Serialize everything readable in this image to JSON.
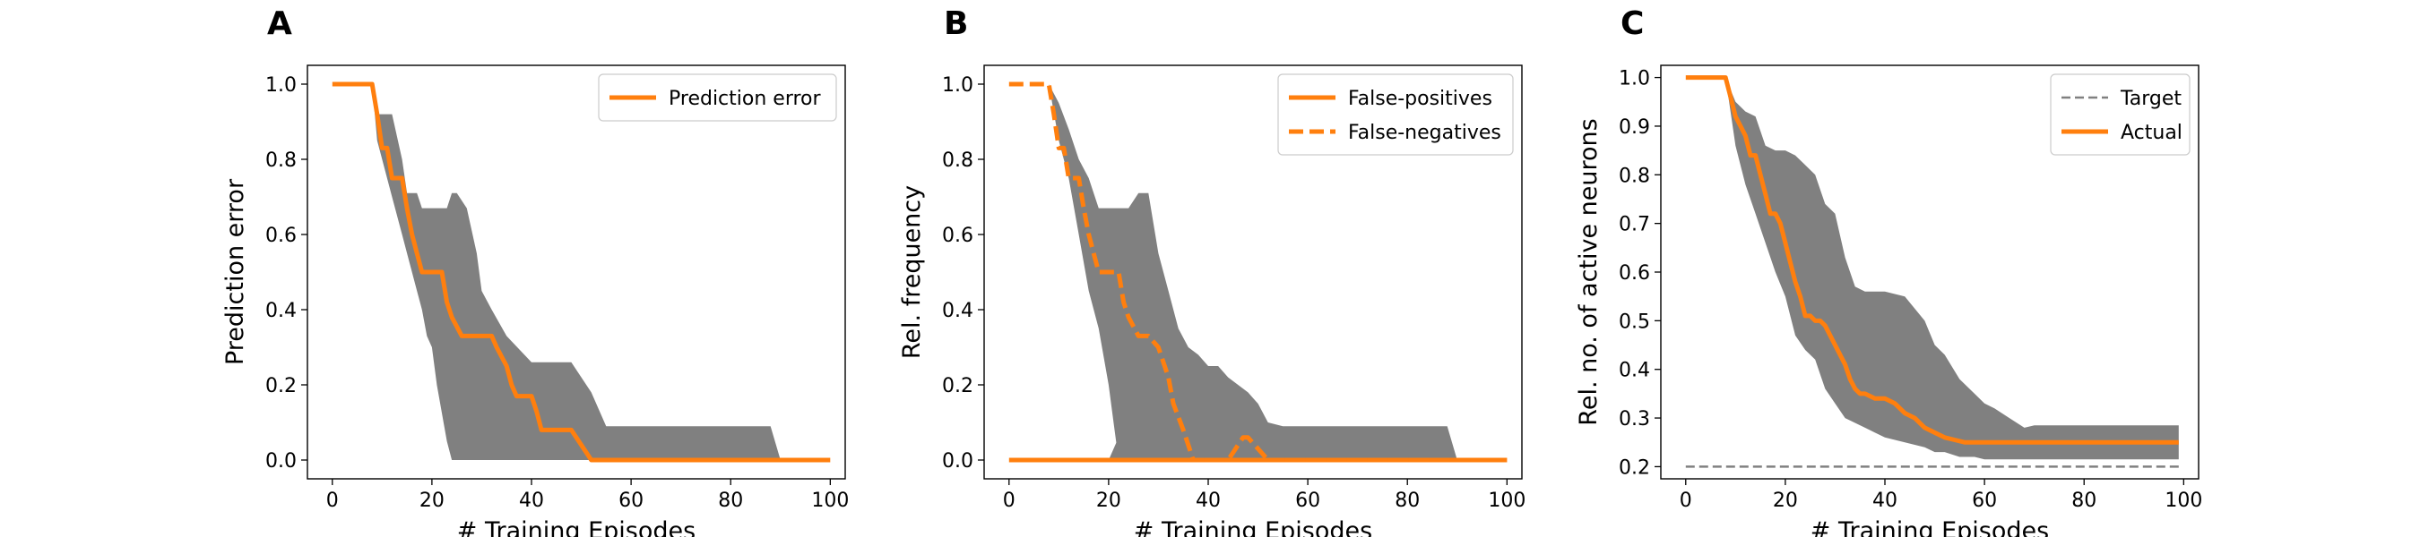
{
  "chart_data": [
    {
      "panel": "A",
      "type": "line",
      "xlabel": "# Training Episodes",
      "ylabel": "Prediction error",
      "xlim": [
        -5,
        103
      ],
      "ylim": [
        -0.05,
        1.05
      ],
      "xticks": [
        0,
        20,
        40,
        60,
        80,
        100
      ],
      "yticks": [
        0.0,
        0.2,
        0.4,
        0.6,
        0.8,
        1.0
      ],
      "ytick_labels": [
        "0.0",
        "0.2",
        "0.4",
        "0.6",
        "0.8",
        "1.0"
      ],
      "grid": false,
      "legend_position": "upper right",
      "bands": [
        {
          "color": "#808080",
          "x": [
            0,
            8,
            9,
            12,
            14,
            15,
            17,
            18,
            19,
            20,
            21,
            23,
            24,
            25,
            27,
            29,
            30,
            32,
            35,
            40,
            48,
            52,
            55,
            60,
            88,
            90,
            100
          ],
          "upper": [
            1,
            1,
            0.92,
            0.92,
            0.8,
            0.71,
            0.71,
            0.67,
            0.67,
            0.67,
            0.67,
            0.67,
            0.71,
            0.71,
            0.67,
            0.55,
            0.45,
            0.4,
            0.33,
            0.26,
            0.26,
            0.18,
            0.09,
            0.09,
            0.09,
            0.0,
            0.0
          ],
          "lower": [
            1,
            1,
            0.85,
            0.7,
            0.6,
            0.55,
            0.45,
            0.4,
            0.33,
            0.3,
            0.2,
            0.05,
            0.0,
            0.0,
            0.0,
            0.0,
            0.0,
            0.0,
            0.0,
            0.0,
            0.0,
            0.0,
            0.0,
            0.0,
            0.0,
            0.0,
            0.0
          ]
        }
      ],
      "series": [
        {
          "name": "Prediction error",
          "color": "#ff7f0e",
          "dash": "solid",
          "x": [
            0,
            8,
            9,
            10,
            11,
            12,
            14,
            15,
            16,
            17,
            18,
            19,
            20,
            22,
            23,
            24,
            26,
            27,
            30,
            32,
            33,
            35,
            36,
            37,
            38,
            40,
            41,
            42,
            45,
            48,
            50,
            52,
            55,
            60,
            70,
            80,
            90,
            100
          ],
          "y": [
            1,
            1,
            0.92,
            0.83,
            0.83,
            0.75,
            0.75,
            0.67,
            0.6,
            0.55,
            0.5,
            0.5,
            0.5,
            0.5,
            0.42,
            0.38,
            0.33,
            0.33,
            0.33,
            0.33,
            0.3,
            0.25,
            0.2,
            0.17,
            0.17,
            0.17,
            0.13,
            0.08,
            0.08,
            0.08,
            0.04,
            0.0,
            0.0,
            0.0,
            0.0,
            0.0,
            0.0,
            0.0
          ]
        }
      ]
    },
    {
      "panel": "B",
      "type": "line",
      "xlabel": "# Training Episodes",
      "ylabel": "Rel. frequency",
      "xlim": [
        -5,
        103
      ],
      "ylim": [
        -0.05,
        1.05
      ],
      "xticks": [
        0,
        20,
        40,
        60,
        80,
        100
      ],
      "yticks": [
        0.0,
        0.2,
        0.4,
        0.6,
        0.8,
        1.0
      ],
      "ytick_labels": [
        "0.0",
        "0.2",
        "0.4",
        "0.6",
        "0.8",
        "1.0"
      ],
      "grid": false,
      "legend_position": "upper right",
      "bands": [
        {
          "color": "#808080",
          "x": [
            0,
            8,
            10,
            12,
            14,
            16,
            18,
            20,
            21,
            22,
            24,
            26,
            28,
            30,
            32,
            34,
            36,
            38,
            40,
            42,
            44,
            46,
            48,
            50,
            52,
            55,
            60,
            88,
            90,
            100
          ],
          "upper": [
            1,
            1,
            0.95,
            0.88,
            0.8,
            0.75,
            0.67,
            0.67,
            0.67,
            0.67,
            0.67,
            0.71,
            0.71,
            0.55,
            0.45,
            0.35,
            0.3,
            0.28,
            0.25,
            0.25,
            0.22,
            0.2,
            0.18,
            0.15,
            0.1,
            0.09,
            0.09,
            0.09,
            0.0,
            0.0
          ],
          "lower": [
            1,
            1,
            0.85,
            0.75,
            0.6,
            0.45,
            0.35,
            0.2,
            0.1,
            0.0,
            0.0,
            0.0,
            0.0,
            0.0,
            0.0,
            0.0,
            0.0,
            0.0,
            0.0,
            0.0,
            0.0,
            0.0,
            0.0,
            0.0,
            0.0,
            0.0,
            0.0,
            0.0,
            0.0,
            0.0
          ]
        },
        {
          "color": "#808080",
          "x": [
            0,
            20,
            22,
            24,
            25,
            26,
            27,
            28,
            30,
            33,
            36,
            38,
            40,
            42,
            44,
            46,
            48,
            50,
            52,
            55,
            100
          ],
          "upper": [
            0,
            0,
            0.06,
            0.09,
            0.08,
            0.06,
            0.04,
            0.0,
            0.0,
            0.0,
            0.0,
            0.0,
            0.0,
            0.0,
            0.0,
            0.0,
            0.0,
            0.0,
            0.0,
            0.0,
            0.0
          ],
          "lower": [
            0,
            0,
            0.0,
            0.0,
            0.0,
            0.0,
            0.0,
            0.0,
            0.0,
            0.0,
            0.0,
            0.0,
            0.0,
            0.0,
            0.0,
            0.0,
            0.0,
            0.0,
            0.0,
            0.0,
            0.0
          ]
        }
      ],
      "series": [
        {
          "name": "False-positives",
          "color": "#ff7f0e",
          "dash": "solid",
          "x": [
            0,
            20,
            40,
            60,
            80,
            100
          ],
          "y": [
            0,
            0,
            0,
            0,
            0,
            0
          ]
        },
        {
          "name": "False-negatives",
          "color": "#ff7f0e",
          "dash": "dashed",
          "x": [
            0,
            8,
            9,
            10,
            11,
            12,
            14,
            15,
            16,
            17,
            18,
            19,
            20,
            22,
            23,
            24,
            26,
            27,
            28,
            30,
            32,
            33,
            35,
            36,
            37,
            38,
            40,
            44,
            45,
            46,
            47,
            48,
            50,
            52,
            100
          ],
          "y": [
            1,
            1,
            0.92,
            0.83,
            0.83,
            0.75,
            0.75,
            0.67,
            0.6,
            0.55,
            0.5,
            0.5,
            0.5,
            0.5,
            0.42,
            0.38,
            0.33,
            0.33,
            0.33,
            0.3,
            0.22,
            0.15,
            0.08,
            0.04,
            0.0,
            0.0,
            0.0,
            0.0,
            0.02,
            0.04,
            0.06,
            0.06,
            0.03,
            0.0,
            0.0
          ]
        }
      ]
    },
    {
      "panel": "C",
      "type": "line",
      "xlabel": "# Training Episodes",
      "ylabel": "Rel. no. of active neurons",
      "xlim": [
        -5,
        103
      ],
      "ylim": [
        0.175,
        1.025
      ],
      "xticks": [
        0,
        20,
        40,
        60,
        80,
        100
      ],
      "yticks": [
        0.2,
        0.3,
        0.4,
        0.5,
        0.6,
        0.7,
        0.8,
        0.9,
        1.0
      ],
      "ytick_labels": [
        "0.2",
        "0.3",
        "0.4",
        "0.5",
        "0.6",
        "0.7",
        "0.8",
        "0.9",
        "1.0"
      ],
      "grid": false,
      "legend_position": "upper right",
      "bands": [
        {
          "color": "#808080",
          "x": [
            0,
            8,
            10,
            12,
            14,
            16,
            18,
            20,
            22,
            24,
            26,
            28,
            30,
            32,
            34,
            36,
            38,
            40,
            44,
            48,
            50,
            52,
            55,
            58,
            60,
            62,
            65,
            68,
            70,
            80,
            90,
            99
          ],
          "upper": [
            1,
            1,
            0.95,
            0.93,
            0.92,
            0.86,
            0.85,
            0.85,
            0.84,
            0.82,
            0.8,
            0.74,
            0.72,
            0.63,
            0.57,
            0.56,
            0.56,
            0.56,
            0.55,
            0.5,
            0.45,
            0.43,
            0.38,
            0.35,
            0.33,
            0.32,
            0.3,
            0.28,
            0.285,
            0.285,
            0.285,
            0.285
          ],
          "lower": [
            1,
            1,
            0.86,
            0.78,
            0.72,
            0.66,
            0.6,
            0.55,
            0.47,
            0.44,
            0.42,
            0.36,
            0.33,
            0.3,
            0.29,
            0.28,
            0.27,
            0.26,
            0.25,
            0.24,
            0.23,
            0.23,
            0.22,
            0.22,
            0.215,
            0.215,
            0.215,
            0.215,
            0.215,
            0.215,
            0.215,
            0.215
          ]
        }
      ],
      "series": [
        {
          "name": "Target",
          "color": "#808080",
          "dash": "dashed",
          "x": [
            0,
            99
          ],
          "y": [
            0.2,
            0.2
          ]
        },
        {
          "name": "Actual",
          "color": "#ff7f0e",
          "dash": "solid",
          "x": [
            0,
            8,
            9,
            10,
            11,
            12,
            13,
            14,
            15,
            16,
            17,
            18,
            19,
            20,
            21,
            22,
            23,
            24,
            25,
            26,
            27,
            28,
            30,
            32,
            33,
            34,
            35,
            36,
            38,
            40,
            42,
            44,
            46,
            48,
            50,
            52,
            54,
            56,
            58,
            60,
            70,
            80,
            90,
            99
          ],
          "y": [
            1,
            1,
            0.96,
            0.92,
            0.9,
            0.88,
            0.84,
            0.84,
            0.8,
            0.76,
            0.72,
            0.72,
            0.7,
            0.66,
            0.62,
            0.58,
            0.55,
            0.51,
            0.51,
            0.5,
            0.5,
            0.49,
            0.45,
            0.41,
            0.38,
            0.36,
            0.35,
            0.35,
            0.34,
            0.34,
            0.33,
            0.31,
            0.3,
            0.28,
            0.27,
            0.26,
            0.255,
            0.25,
            0.25,
            0.25,
            0.25,
            0.25,
            0.25,
            0.25
          ]
        }
      ]
    }
  ]
}
